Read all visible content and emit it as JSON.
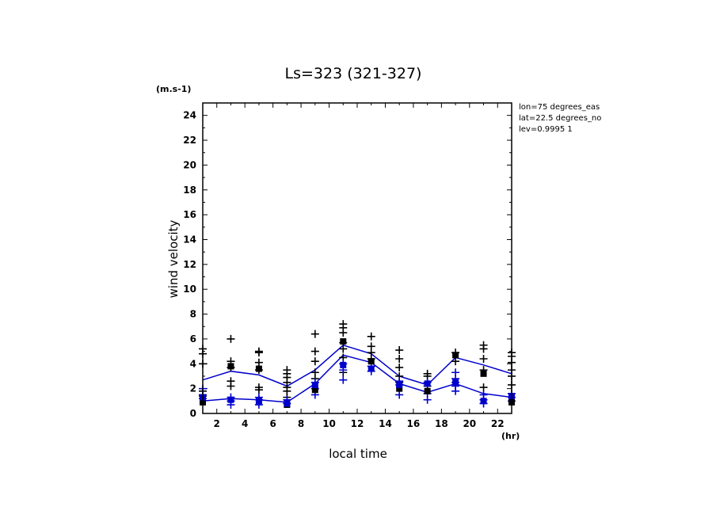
{
  "chart_data": {
    "type": "line",
    "title": "Ls=323 (321-327)",
    "ylabel": "wind velocity",
    "y_unit": "(m.s-1)",
    "xlabel": "local time",
    "x_unit": "(hr)",
    "xlim": [
      1,
      23
    ],
    "ylim": [
      0,
      25
    ],
    "xticks": [
      2,
      4,
      6,
      8,
      10,
      12,
      14,
      16,
      18,
      20,
      22
    ],
    "yticks": [
      0,
      2,
      4,
      6,
      8,
      10,
      12,
      14,
      16,
      18,
      20,
      22,
      24
    ],
    "info_lines": [
      "lon=75 degrees_eas",
      "lat=22.5 degrees_no",
      "lev=0.9995 1"
    ],
    "series": [
      {
        "color": "#0000cc",
        "x": [
          1,
          3,
          5,
          7,
          9,
          11,
          13,
          15,
          17,
          19,
          21,
          23
        ],
        "values": [
          2.7,
          3.4,
          3.1,
          2.2,
          3.5,
          5.5,
          4.8,
          3.0,
          2.3,
          4.5,
          3.9,
          3.2
        ]
      },
      {
        "color": "#0000cc",
        "x": [
          1,
          3,
          5,
          7,
          9,
          11,
          13,
          15,
          17,
          19,
          21,
          23
        ],
        "values": [
          1.0,
          1.2,
          1.1,
          0.9,
          2.4,
          4.7,
          4.1,
          2.4,
          1.7,
          2.4,
          1.6,
          1.3
        ]
      }
    ],
    "square_markers": [
      {
        "color": "#000000",
        "points": [
          [
            1,
            0.9
          ],
          [
            3,
            3.8
          ],
          [
            5,
            3.6
          ],
          [
            7,
            0.7
          ],
          [
            9,
            1.9
          ],
          [
            11,
            5.8
          ],
          [
            13,
            4.2
          ],
          [
            15,
            2.0
          ],
          [
            17,
            1.8
          ],
          [
            19,
            4.7
          ],
          [
            21,
            3.2
          ],
          [
            23,
            0.9
          ]
        ]
      },
      {
        "color": "#0000cc",
        "points": [
          [
            1,
            1.3
          ],
          [
            3,
            1.1
          ],
          [
            5,
            1.0
          ],
          [
            7,
            0.8
          ],
          [
            9,
            2.3
          ],
          [
            11,
            3.9
          ],
          [
            13,
            3.6
          ],
          [
            15,
            2.3
          ],
          [
            17,
            2.4
          ],
          [
            19,
            2.5
          ],
          [
            21,
            1.0
          ],
          [
            23,
            1.4
          ]
        ]
      }
    ],
    "cross_markers": [
      {
        "color": "#000000",
        "points": [
          [
            1,
            5.2
          ],
          [
            1,
            4.8
          ],
          [
            1,
            4.0
          ],
          [
            1,
            1.8
          ],
          [
            1,
            1.4
          ],
          [
            3,
            6.0
          ],
          [
            3,
            4.2
          ],
          [
            3,
            3.7
          ],
          [
            3,
            2.6
          ],
          [
            3,
            2.2
          ],
          [
            5,
            5.0
          ],
          [
            5,
            4.9
          ],
          [
            5,
            4.1
          ],
          [
            5,
            3.5
          ],
          [
            5,
            2.1
          ],
          [
            5,
            1.9
          ],
          [
            7,
            3.5
          ],
          [
            7,
            3.2
          ],
          [
            7,
            2.9
          ],
          [
            7,
            2.5
          ],
          [
            7,
            2.1
          ],
          [
            7,
            1.8
          ],
          [
            7,
            1.3
          ],
          [
            9,
            6.4
          ],
          [
            9,
            5.0
          ],
          [
            9,
            4.2
          ],
          [
            9,
            3.3
          ],
          [
            9,
            2.8
          ],
          [
            11,
            7.2
          ],
          [
            11,
            6.9
          ],
          [
            11,
            6.5
          ],
          [
            11,
            5.7
          ],
          [
            11,
            5.2
          ],
          [
            11,
            4.5
          ],
          [
            11,
            3.3
          ],
          [
            13,
            6.2
          ],
          [
            13,
            5.4
          ],
          [
            13,
            4.9
          ],
          [
            13,
            4.4
          ],
          [
            15,
            5.1
          ],
          [
            15,
            4.4
          ],
          [
            15,
            3.7
          ],
          [
            15,
            3.0
          ],
          [
            15,
            2.5
          ],
          [
            17,
            3.2
          ],
          [
            17,
            3.0
          ],
          [
            17,
            2.2
          ],
          [
            19,
            4.9
          ],
          [
            19,
            4.2
          ],
          [
            21,
            5.5
          ],
          [
            21,
            5.2
          ],
          [
            21,
            4.4
          ],
          [
            21,
            3.5
          ],
          [
            21,
            2.1
          ],
          [
            23,
            4.9
          ],
          [
            23,
            4.6
          ],
          [
            23,
            4.1
          ],
          [
            23,
            3.5
          ],
          [
            23,
            3.0
          ],
          [
            23,
            2.3
          ]
        ]
      },
      {
        "color": "#0000cc",
        "points": [
          [
            1,
            2.0
          ],
          [
            1,
            1.5
          ],
          [
            1,
            1.2
          ],
          [
            3,
            1.3
          ],
          [
            3,
            1.0
          ],
          [
            3,
            0.7
          ],
          [
            5,
            1.3
          ],
          [
            5,
            1.1
          ],
          [
            5,
            0.7
          ],
          [
            7,
            1.1
          ],
          [
            7,
            0.8
          ],
          [
            9,
            2.5
          ],
          [
            9,
            2.0
          ],
          [
            9,
            1.5
          ],
          [
            11,
            4.0
          ],
          [
            11,
            3.5
          ],
          [
            11,
            2.7
          ],
          [
            13,
            3.8
          ],
          [
            13,
            3.4
          ],
          [
            15,
            2.6
          ],
          [
            15,
            2.3
          ],
          [
            15,
            1.5
          ],
          [
            17,
            2.5
          ],
          [
            17,
            1.6
          ],
          [
            17,
            1.1
          ],
          [
            19,
            3.3
          ],
          [
            19,
            2.8
          ],
          [
            19,
            2.5
          ],
          [
            19,
            2.2
          ],
          [
            19,
            1.8
          ],
          [
            21,
            1.5
          ],
          [
            21,
            1.1
          ],
          [
            21,
            0.8
          ],
          [
            23,
            1.6
          ],
          [
            23,
            1.3
          ],
          [
            23,
            1.0
          ]
        ]
      }
    ]
  }
}
